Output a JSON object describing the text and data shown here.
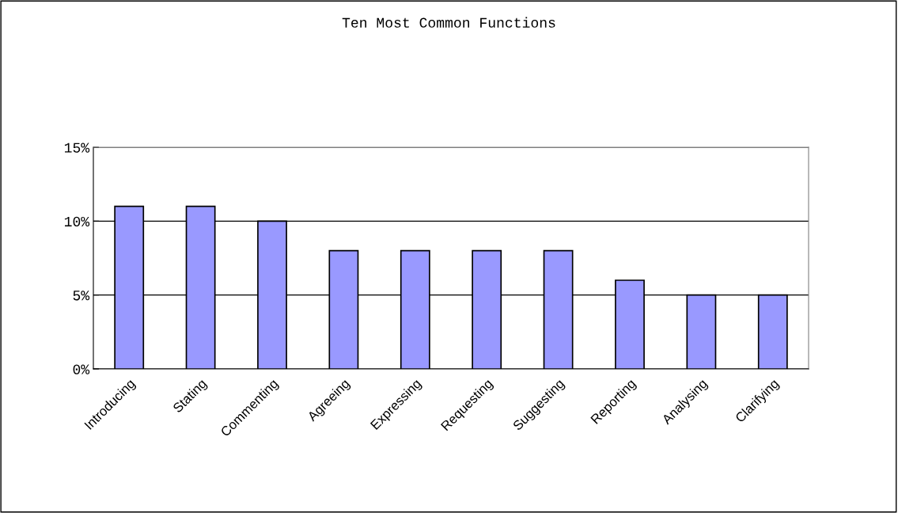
{
  "chart_data": {
    "type": "bar",
    "title": "Ten Most Common Functions",
    "categories": [
      "Introducing",
      "Stating",
      "Commenting",
      "Agreeing",
      "Expressing",
      "Requesting",
      "Suggesting",
      "Reporting",
      "Analysing",
      "Clarifying"
    ],
    "values": [
      11,
      11,
      10,
      8,
      8,
      8,
      8,
      6,
      5,
      5
    ],
    "color": "#9999ff",
    "ylim": [
      0,
      15
    ],
    "yticks": [
      {
        "value": 0,
        "label": "0%"
      },
      {
        "value": 5,
        "label": "5%"
      },
      {
        "value": 10,
        "label": "10%"
      },
      {
        "value": 15,
        "label": "15%"
      }
    ],
    "grid": "y",
    "legend": false
  }
}
